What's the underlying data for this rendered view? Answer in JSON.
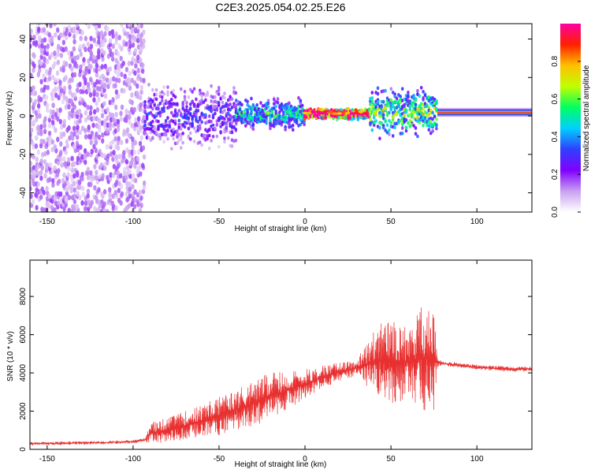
{
  "title": "C2E3.2025.054.02.25.E26",
  "chart_data": [
    {
      "type": "heatmap",
      "xlabel": "Height of straight line (km)",
      "ylabel": "Frequency (Hz)",
      "xlim": [
        -160,
        132
      ],
      "ylim": [
        -50,
        48
      ],
      "x_ticks": [
        -150,
        -100,
        -50,
        0,
        50,
        100
      ],
      "y_ticks": [
        -40,
        -20,
        0,
        20,
        40
      ],
      "colorbar": {
        "label": "Normalized spectral amplitude",
        "range": [
          0,
          1
        ],
        "ticks": [
          0.0,
          0.2,
          0.4,
          0.6,
          0.8
        ],
        "colormap": [
          "#ffffff",
          "#c8a0f0",
          "#8000ff",
          "#3040ff",
          "#00d0ff",
          "#00ff60",
          "#c0ff00",
          "#ffc000",
          "#ff2000",
          "#ff00a0"
        ]
      },
      "regions": [
        {
          "x_range": [
            -160,
            -93
          ],
          "freq_range": [
            -50,
            48
          ],
          "amplitude": 0.1,
          "pattern": "broadband noise"
        },
        {
          "x_range": [
            -93,
            -40
          ],
          "freq_range": [
            -18,
            18
          ],
          "amplitude": 0.2,
          "pattern": "scattered clusters"
        },
        {
          "x_range": [
            -40,
            0
          ],
          "freq_range": [
            -8,
            10
          ],
          "amplitude": 0.35,
          "pattern": "narrowing band"
        },
        {
          "x_range": [
            0,
            38
          ],
          "freq_range": [
            -2,
            4
          ],
          "amplitude": 0.9,
          "pattern": "narrow line near 1 Hz"
        },
        {
          "x_range": [
            38,
            77
          ],
          "freq_range": [
            -12,
            16
          ],
          "amplitude": 0.45,
          "pattern": "clusters"
        },
        {
          "x_range": [
            77,
            132
          ],
          "freq_range": [
            -1,
            4
          ],
          "amplitude": 1.0,
          "pattern": "steady line near 1.5 Hz"
        }
      ],
      "line_frequency_hz": 1.5
    },
    {
      "type": "line",
      "xlabel": "Height of straight line (km)",
      "ylabel": "SNR (10 * v/v)",
      "xlim": [
        -160,
        132
      ],
      "ylim": [
        0,
        9900
      ],
      "x_ticks": [
        -150,
        -100,
        -50,
        0,
        50,
        100
      ],
      "y_ticks": [
        0,
        2000,
        4000,
        6000,
        8000
      ],
      "series_color": "#e83030",
      "x": [
        -160,
        -140,
        -120,
        -100,
        -93,
        -90,
        -80,
        -70,
        -60,
        -50,
        -40,
        -30,
        -20,
        -10,
        0,
        10,
        20,
        30,
        40,
        45,
        50,
        55,
        60,
        65,
        70,
        75,
        77,
        80,
        90,
        100,
        110,
        120,
        132
      ],
      "y": [
        300,
        320,
        350,
        400,
        500,
        850,
        1000,
        1250,
        1500,
        1750,
        2100,
        2400,
        2800,
        3100,
        3400,
        3800,
        4050,
        4250,
        4550,
        4650,
        4700,
        4600,
        4550,
        4700,
        4750,
        4600,
        4550,
        4500,
        4400,
        4300,
        4250,
        4200,
        4200
      ],
      "spread": [
        80,
        80,
        80,
        80,
        100,
        550,
        650,
        750,
        850,
        1000,
        1100,
        1200,
        1200,
        1000,
        800,
        600,
        500,
        400,
        1700,
        2000,
        2400,
        2200,
        1800,
        2500,
        2900,
        2600,
        200,
        130,
        120,
        120,
        120,
        120,
        120
      ]
    }
  ]
}
